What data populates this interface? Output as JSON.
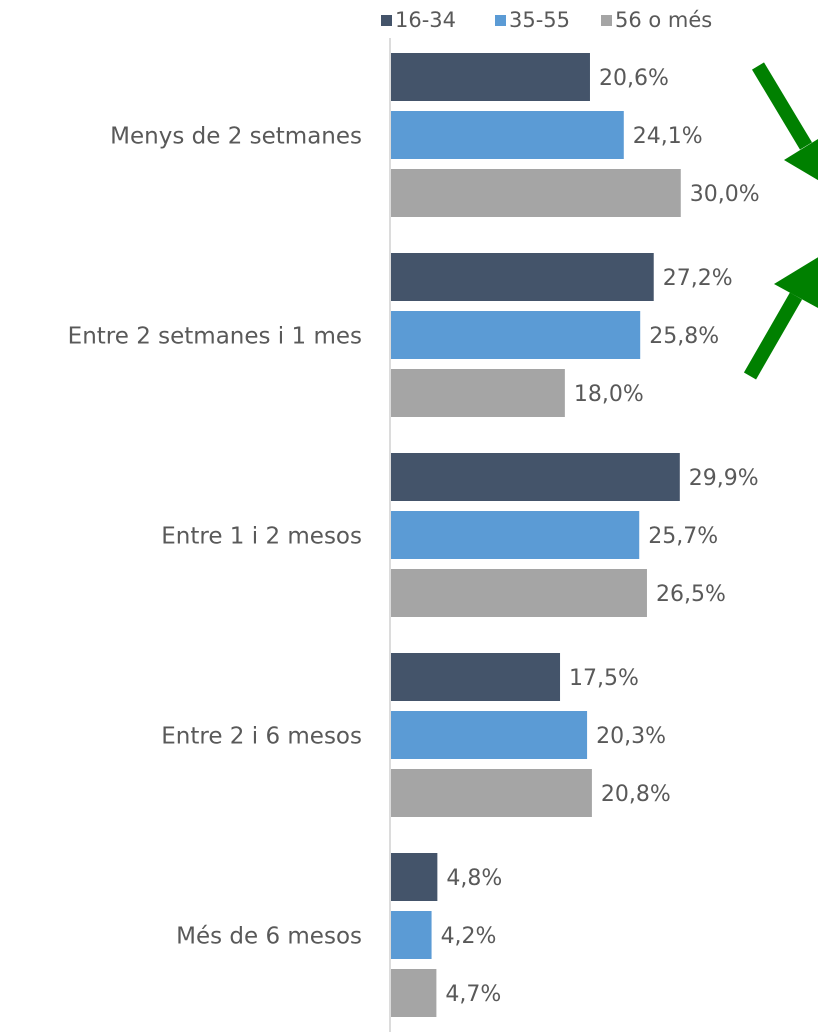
{
  "chart_data": {
    "type": "bar",
    "orientation": "horizontal",
    "categories": [
      "Menys de 2 setmanes",
      "Entre 2 setmanes i 1 mes",
      "Entre 1 i 2 mesos",
      "Entre 2 i 6 mesos",
      "Més de 6 mesos"
    ],
    "series": [
      {
        "name": "16-34",
        "color": "#44546a",
        "values": [
          20.6,
          27.2,
          29.9,
          17.5,
          4.8
        ],
        "value_labels": [
          "20,6%",
          "27,2%",
          "29,9%",
          "17,5%",
          "4,8%"
        ]
      },
      {
        "name": "35-55",
        "color": "#5b9bd5",
        "values": [
          24.1,
          25.8,
          25.7,
          20.3,
          4.2
        ],
        "value_labels": [
          "24,1%",
          "25,8%",
          "25,7%",
          "20,3%",
          "4,2%"
        ]
      },
      {
        "name": "56 o més",
        "color": "#a5a5a5",
        "values": [
          30.0,
          18.0,
          26.5,
          20.8,
          4.7
        ],
        "value_labels": [
          "30,0%",
          "18,0%",
          "26,5%",
          "20,8%",
          "4,7%"
        ]
      }
    ],
    "xlim": [
      0,
      44
    ],
    "legend": "top"
  }
}
